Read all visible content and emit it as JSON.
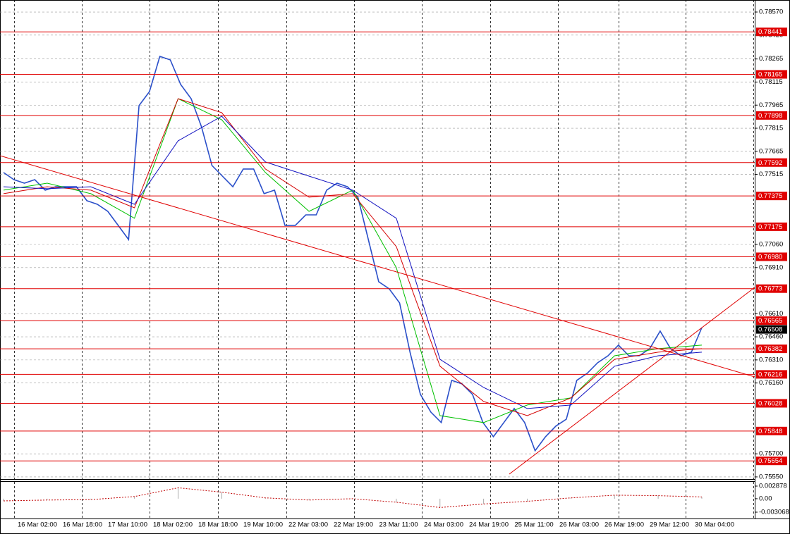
{
  "chart_data": {
    "type": "line",
    "ylim": [
      0.75536,
      0.78648
    ],
    "yticks": [
      {
        "value": 0.7857,
        "label": "0.78570"
      },
      {
        "value": 0.7842,
        "label": "0.78420"
      },
      {
        "value": 0.78265,
        "label": "0.78265"
      },
      {
        "value": 0.78115,
        "label": "0.78115"
      },
      {
        "value": 0.77965,
        "label": "0.77965"
      },
      {
        "value": 0.77815,
        "label": "0.77815"
      },
      {
        "value": 0.77665,
        "label": "0.77665"
      },
      {
        "value": 0.77515,
        "label": "0.77515"
      },
      {
        "value": 0.7706,
        "label": "0.77060"
      },
      {
        "value": 0.7691,
        "label": "0.76910"
      },
      {
        "value": 0.7661,
        "label": "0.76610"
      },
      {
        "value": 0.7646,
        "label": "0.76460"
      },
      {
        "value": 0.7631,
        "label": "0.76310"
      },
      {
        "value": 0.7616,
        "label": "0.76160"
      },
      {
        "value": 0.757,
        "label": "0.75700"
      },
      {
        "value": 0.7555,
        "label": "0.75550"
      }
    ],
    "grid": true,
    "xtick_labels": [
      "16 Mar 02:00",
      "16 Mar 18:00",
      "17 Mar 10:00",
      "18 Mar 02:00",
      "18 Mar 18:00",
      "19 Mar 10:00",
      "22 Mar 03:00",
      "22 Mar 19:00",
      "23 Mar 11:00",
      "24 Mar 03:00",
      "24 Mar 19:00",
      "25 Mar 11:00",
      "26 Mar 03:00",
      "26 Mar 19:00",
      "29 Mar 12:00",
      "30 Mar 04:00"
    ],
    "series": [
      {
        "color": "#2a4fc9",
        "values": [
          0.77527,
          0.77481,
          0.77458,
          0.77481,
          0.77413,
          0.77435,
          0.77435,
          0.77435,
          0.77344,
          0.77321,
          0.77275,
          0.77184,
          0.77092,
          0.77962,
          0.78053,
          0.78282,
          0.78259,
          0.78099,
          0.78007,
          0.77824,
          0.77573,
          0.77504,
          0.77435,
          0.7755,
          0.7755,
          0.7739,
          0.77413,
          0.77184,
          0.77184,
          0.77252,
          0.77252,
          0.77413,
          0.77458,
          0.77435,
          0.77367,
          0.77092,
          0.76818,
          0.76772,
          0.7668,
          0.7636,
          0.76086,
          0.75971,
          0.75903,
          0.76177,
          0.76154,
          0.76086,
          0.75903,
          0.75811,
          0.75903,
          0.75994,
          0.75903,
          0.7572,
          0.75811,
          0.7588,
          0.75925,
          0.76177,
          0.76223,
          0.76291,
          0.76337,
          0.76406,
          0.76337,
          0.76337,
          0.76383,
          0.76497,
          0.76383,
          0.76337,
          0.7636,
          0.7652
        ]
      },
      {
        "color": "#00c000",
        "values": [
          0.77413,
          0.77458,
          0.7739,
          0.7723,
          0.78007,
          0.7787,
          0.77527,
          0.77275,
          0.77413,
          0.76909,
          0.75948,
          0.75903,
          0.76017,
          0.76063,
          0.76337,
          0.76383,
          0.76406
        ]
      },
      {
        "color": "#d40000",
        "values": [
          0.7739,
          0.77435,
          0.77413,
          0.77298,
          0.78007,
          0.77916,
          0.7755,
          0.77367,
          0.7739,
          0.77046,
          0.76269,
          0.7604,
          0.75948,
          0.76063,
          0.76314,
          0.7636,
          0.76383
        ]
      },
      {
        "color": "#1010c0",
        "values": [
          0.77435,
          0.77422,
          0.77435,
          0.77321,
          0.77733,
          0.77893,
          0.77596,
          0.77504,
          0.77413,
          0.7723,
          0.76314,
          0.76131,
          0.75994,
          0.76017,
          0.76269,
          0.76337,
          0.7636
        ]
      }
    ],
    "levels": [
      {
        "value": 0.78441,
        "label": "0.78441"
      },
      {
        "value": 0.78165,
        "label": "0.78165"
      },
      {
        "value": 0.77898,
        "label": "0.77898"
      },
      {
        "value": 0.77592,
        "label": "0.77592"
      },
      {
        "value": 0.77375,
        "label": "0.77375"
      },
      {
        "value": 0.77175,
        "label": "0.77175"
      },
      {
        "value": 0.7698,
        "label": "0.76980"
      },
      {
        "value": 0.76773,
        "label": "0.76773"
      },
      {
        "value": 0.76565,
        "label": "0.76565"
      },
      {
        "value": 0.76382,
        "label": "0.76382"
      },
      {
        "value": 0.76216,
        "label": "0.76216"
      },
      {
        "value": 0.76028,
        "label": "0.76028"
      },
      {
        "value": 0.75848,
        "label": "0.75848"
      },
      {
        "value": 0.75654,
        "label": "0.75654"
      }
    ],
    "level_color": "#e00000",
    "current_price": {
      "value": 0.76508,
      "label": "0.76508"
    },
    "oscillator": {
      "ylim": [
        -0.004354,
        0.004003
      ],
      "yticks": [
        {
          "value": 0.002878,
          "label": "0.002878"
        },
        {
          "value": 0,
          "label": "0.00"
        },
        {
          "value": -0.003068,
          "label": "-0.003068"
        }
      ],
      "color": "#c00000",
      "values": [
        -0.0005,
        -0.0003,
        -0.0002,
        0.0005,
        0.0025,
        0.0015,
        0.0002,
        -0.0003,
        0,
        -0.0008,
        -0.002,
        -0.0012,
        -0.0006,
        0.0002,
        0.0008,
        0.0007,
        0.0004
      ]
    }
  }
}
